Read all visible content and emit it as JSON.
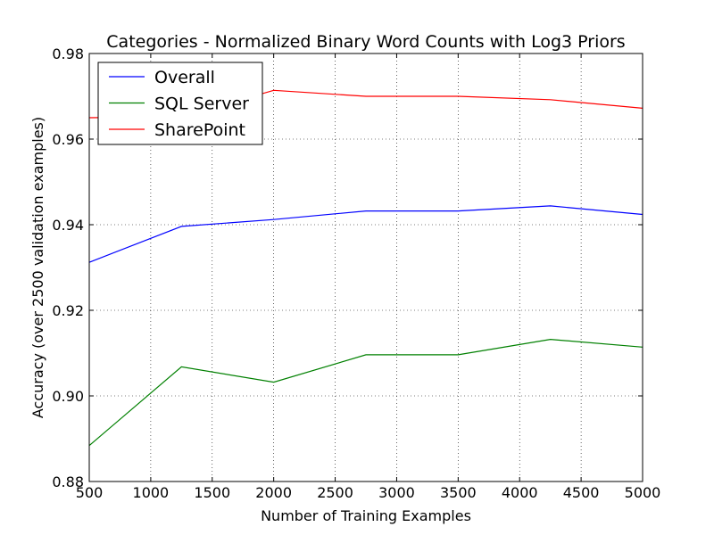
{
  "chart_data": {
    "type": "line",
    "title": "Categories - Normalized Binary Word Counts with Log3 Priors",
    "xlabel": "Number of Training Examples",
    "ylabel": "Accuracy (over 2500 validation examples)",
    "xlim": [
      500,
      5000
    ],
    "ylim": [
      0.88,
      0.98
    ],
    "xticks": [
      500,
      1000,
      1500,
      2000,
      2500,
      3000,
      3500,
      4000,
      4500,
      5000
    ],
    "yticks": [
      0.88,
      0.9,
      0.92,
      0.94,
      0.96,
      0.98
    ],
    "ytick_labels": [
      "0.88",
      "0.90",
      "0.92",
      "0.94",
      "0.96",
      "0.98"
    ],
    "grid": true,
    "legend_position": "top-left",
    "x": [
      500,
      1250,
      2000,
      2750,
      3500,
      4250,
      5000
    ],
    "series": [
      {
        "name": "Overall",
        "color": "#0000ff",
        "values": [
          0.9312,
          0.9396,
          0.9412,
          0.9432,
          0.9432,
          0.9444,
          0.9424
        ]
      },
      {
        "name": "SQL Server",
        "color": "#008000",
        "values": [
          0.8884,
          0.9068,
          0.9032,
          0.9096,
          0.9096,
          0.9132,
          0.9114
        ]
      },
      {
        "name": "SharePoint",
        "color": "#ff0000",
        "values": [
          0.965,
          0.9652,
          0.9714,
          0.97,
          0.97,
          0.9692,
          0.9672
        ]
      }
    ]
  }
}
